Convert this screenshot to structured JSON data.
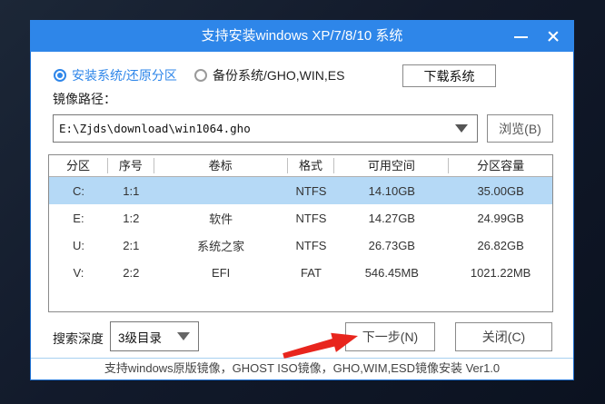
{
  "window": {
    "title": "支持安装windows XP/7/8/10 系统"
  },
  "mode": {
    "install_label": "安装系统/还原分区",
    "backup_label": "备份系统/GHO,WIN,ES",
    "download_button": "下载系统"
  },
  "image_path": {
    "label": "镜像路径：",
    "value": "E:\\Zjds\\download\\win1064.gho",
    "browse_button": "浏览(B)"
  },
  "partition_table": {
    "headers": [
      "分区",
      "序号",
      "卷标",
      "格式",
      "可用空间",
      "分区容量"
    ],
    "rows": [
      {
        "cells": [
          "C:",
          "1:1",
          "",
          "NTFS",
          "14.10GB",
          "35.00GB"
        ],
        "selected": true
      },
      {
        "cells": [
          "E:",
          "1:2",
          "软件",
          "NTFS",
          "14.27GB",
          "24.99GB"
        ],
        "selected": false
      },
      {
        "cells": [
          "U:",
          "2:1",
          "系统之家",
          "NTFS",
          "26.73GB",
          "26.82GB"
        ],
        "selected": false
      },
      {
        "cells": [
          "V:",
          "2:2",
          "EFI",
          "FAT",
          "546.45MB",
          "1021.22MB"
        ],
        "selected": false
      }
    ]
  },
  "footer_controls": {
    "search_depth_label": "搜索深度",
    "search_depth_value": "3级目录",
    "next_button": "下一步(N)",
    "close_button": "关闭(C)"
  },
  "status_bar": {
    "text": "支持windows原版镜像，GHOST ISO镜像，GHO,WIM,ESD镜像安装 Ver1.0"
  },
  "colors": {
    "titlebar_blue": "#2e86e9",
    "selected_row_blue": "#b5d9f6",
    "window_border_blue": "#1d6fd1",
    "arrow_red": "#e8251d"
  }
}
